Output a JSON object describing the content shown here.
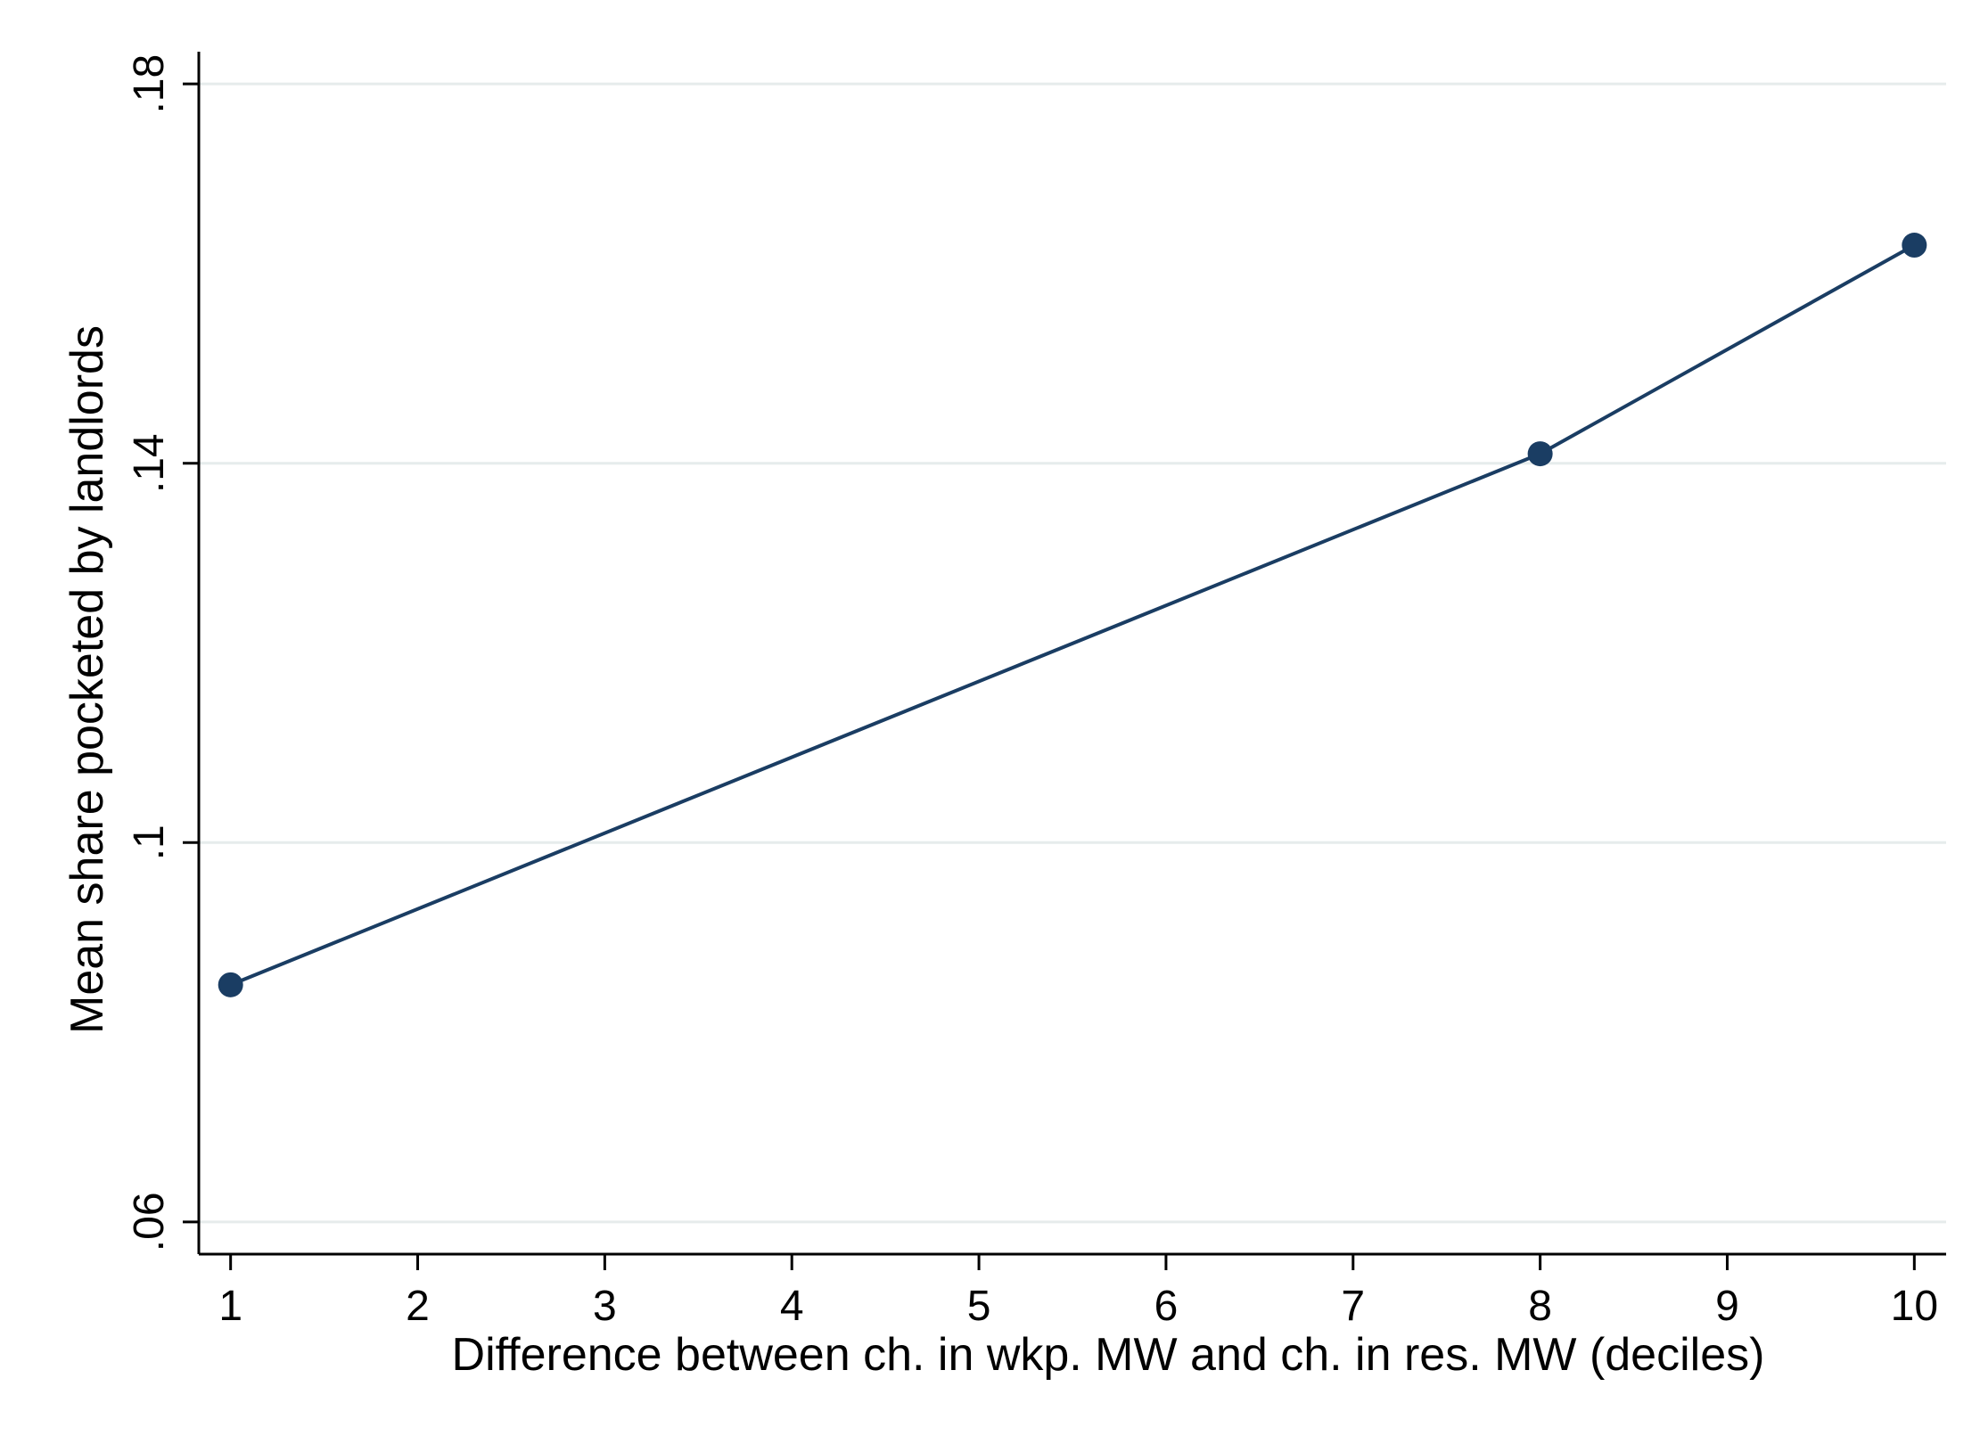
{
  "chart_data": {
    "type": "line",
    "title": "",
    "xlabel": "Difference between ch. in wkp. MW and ch. in res. MW (deciles)",
    "ylabel": "Mean share pocketed by landlords",
    "x_ticks": [
      1,
      2,
      3,
      4,
      5,
      6,
      7,
      8,
      9,
      10
    ],
    "x_tick_labels": [
      "1",
      "2",
      "3",
      "4",
      "5",
      "6",
      "7",
      "8",
      "9",
      "10"
    ],
    "y_ticks": [
      0.06,
      0.1,
      0.14,
      0.18
    ],
    "y_tick_labels": [
      ".06",
      ".1",
      ".14",
      ".18"
    ],
    "xlim": [
      0.83,
      10.17
    ],
    "ylim": [
      0.0566,
      0.1834
    ],
    "grid": true,
    "series": [
      {
        "x": [
          1,
          8,
          10
        ],
        "y": [
          0.085,
          0.141,
          0.163
        ]
      }
    ],
    "colors": {
      "series": "#1a3d63",
      "grid": "#e6ecec",
      "axis": "#000000"
    }
  }
}
